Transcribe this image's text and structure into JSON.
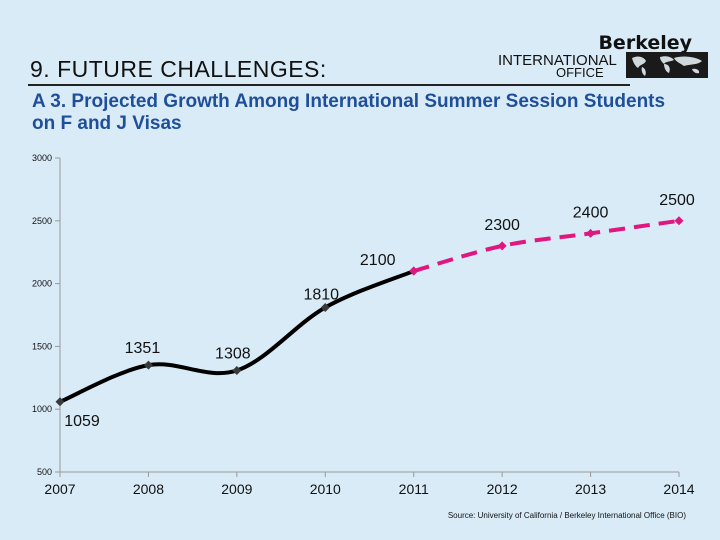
{
  "header": {
    "slide_title": "9. FUTURE CHALLENGES:",
    "logo_berkeley": "Berkeley",
    "logo_international": "INTERNATIONAL",
    "logo_office": "OFFICE"
  },
  "chart_title": "A 3. Projected Growth Among International Summer Session Students on F and J Visas",
  "source": "Source: University of California / Berkeley International Office (BIO)",
  "colors": {
    "actual_line": "#000000",
    "actual_marker": "#3a3a3a",
    "projected_line": "#e0177f",
    "background": "#d9ebf7"
  },
  "chart_data": {
    "type": "line",
    "title": "A 3. Projected Growth Among International Summer Session Students on F and J Visas",
    "x": [
      "2007",
      "2008",
      "2009",
      "2010",
      "2011",
      "2012",
      "2013",
      "2014"
    ],
    "ylim": [
      500,
      3000
    ],
    "yticks": [
      "500",
      "1000",
      "1500",
      "2000",
      "2500",
      "3000"
    ],
    "grid": false,
    "series": [
      {
        "style": "solid",
        "color": "#000000",
        "x": [
          "2007",
          "2008",
          "2009",
          "2010",
          "2011"
        ],
        "values": [
          1059,
          1351,
          1308,
          1810,
          2100
        ]
      },
      {
        "style": "dashed",
        "color": "#e0177f",
        "x": [
          "2011",
          "2012",
          "2013",
          "2014"
        ],
        "values": [
          2100,
          2300,
          2400,
          2500
        ]
      }
    ],
    "data_labels": [
      {
        "x": "2007",
        "text": "1059"
      },
      {
        "x": "2008",
        "text": "1351"
      },
      {
        "x": "2009",
        "text": "1308"
      },
      {
        "x": "2010",
        "text": "1810"
      },
      {
        "x": "2011",
        "text": "2100"
      },
      {
        "x": "2012",
        "text": "2300"
      },
      {
        "x": "2013",
        "text": "2400"
      },
      {
        "x": "2014",
        "text": "2500"
      }
    ]
  }
}
